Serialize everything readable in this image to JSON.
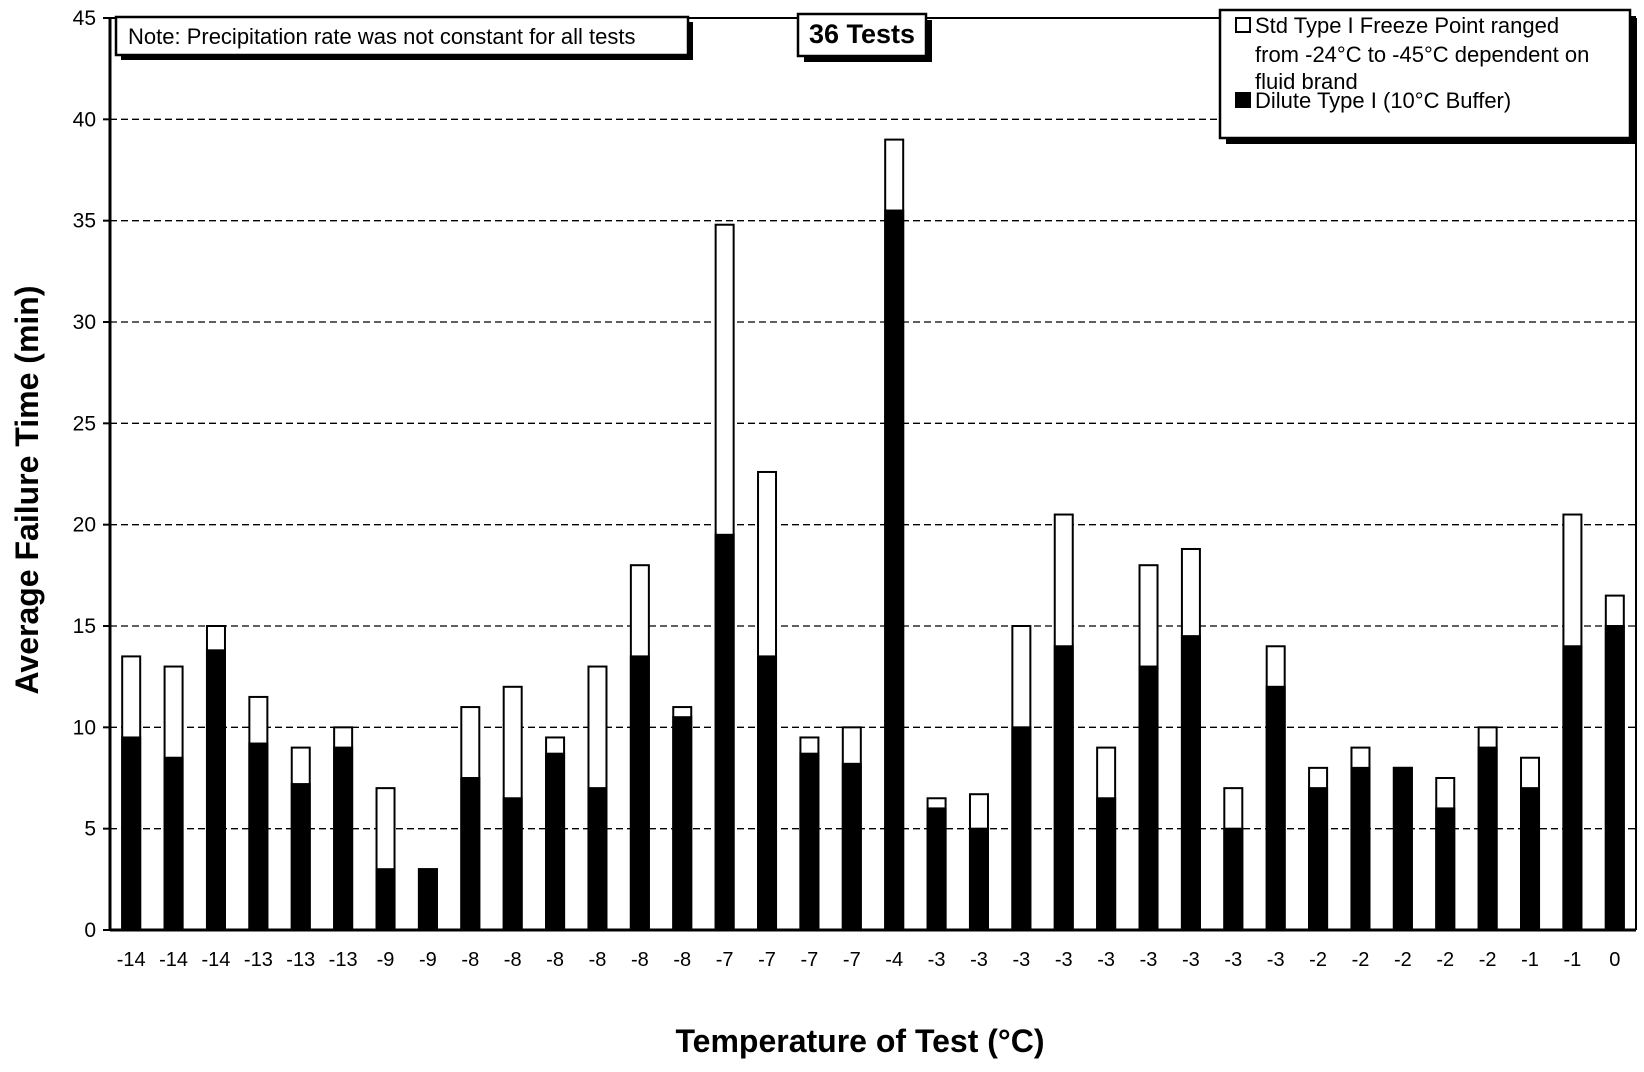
{
  "chart_data": {
    "type": "bar",
    "title": "36 Tests",
    "note": "Note: Precipitation rate was not constant for all tests",
    "xlabel": "Temperature of Test (°C)",
    "ylabel": "Average Failure Time (min)",
    "ylim": [
      0,
      45
    ],
    "yticks": [
      0,
      5,
      10,
      15,
      20,
      25,
      30,
      35,
      40,
      45
    ],
    "grid": "horizontal dashed",
    "legend_position": "top-right",
    "categories": [
      "-14",
      "-14",
      "-14",
      "-13",
      "-13",
      "-13",
      "-9",
      "-9",
      "-8",
      "-8",
      "-8",
      "-8",
      "-8",
      "-8",
      "-7",
      "-7",
      "-7",
      "-7",
      "-4",
      "-3",
      "-3",
      "-3",
      "-3",
      "-3",
      "-3",
      "-3",
      "-3",
      "-3",
      "-2",
      "-2",
      "-2",
      "-2",
      "-2",
      "-1",
      "-1",
      "0"
    ],
    "series": [
      {
        "name": "Std Type I Freeze Point ranged from -24°C to -45°C dependent on fluid brand",
        "fill": "#ffffff",
        "values": [
          13.5,
          13,
          15,
          11.5,
          9,
          10,
          7,
          3,
          11,
          12,
          9.5,
          13,
          18,
          11,
          34.8,
          22.6,
          9.5,
          10,
          39,
          6.5,
          6.7,
          15,
          20.5,
          9,
          18,
          18.8,
          7,
          14,
          8,
          9,
          8,
          7.5,
          10,
          8.5,
          20.5,
          16.5
        ]
      },
      {
        "name": "Dilute Type I (10°C Buffer)",
        "fill": "#000000",
        "values": [
          9.5,
          8.5,
          13.8,
          9.2,
          7.2,
          9,
          3,
          3,
          7.5,
          6.5,
          8.7,
          7,
          13.5,
          10.5,
          19.5,
          13.5,
          8.7,
          8.2,
          35.5,
          6,
          5,
          10,
          14,
          6.5,
          13,
          14.5,
          5,
          12,
          7,
          8,
          8,
          6,
          9,
          7,
          14,
          15
        ]
      }
    ]
  },
  "legend": {
    "std_line1": "Std Type I Freeze Point ranged",
    "std_line2": "from -24°C to -45°C dependent on",
    "std_line3": "fluid brand",
    "dilute": "Dilute Type I (10°C Buffer)"
  }
}
